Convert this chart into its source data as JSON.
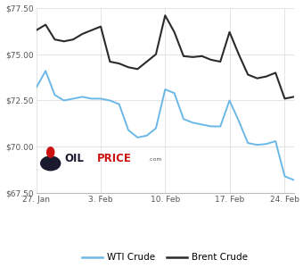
{
  "wti_x": [
    0,
    1,
    2,
    3,
    4,
    5,
    6,
    7,
    8,
    9,
    10,
    11,
    12,
    13,
    14,
    15,
    16,
    17,
    18,
    19,
    20,
    21,
    22,
    23,
    24,
    25,
    26,
    27,
    28
  ],
  "wti_y": [
    73.2,
    74.1,
    72.8,
    72.5,
    72.6,
    72.7,
    72.6,
    72.6,
    72.5,
    72.3,
    70.9,
    70.5,
    70.6,
    71.0,
    73.1,
    72.9,
    71.5,
    71.3,
    71.2,
    71.1,
    71.1,
    72.5,
    71.4,
    70.2,
    70.1,
    70.15,
    70.3,
    68.4,
    68.2
  ],
  "brent_x": [
    0,
    1,
    2,
    3,
    4,
    5,
    6,
    7,
    8,
    9,
    10,
    11,
    12,
    13,
    14,
    15,
    16,
    17,
    18,
    19,
    20,
    21,
    22,
    23,
    24,
    25,
    26,
    27,
    28
  ],
  "brent_y": [
    76.3,
    76.6,
    75.8,
    75.7,
    75.8,
    76.1,
    76.3,
    76.5,
    74.6,
    74.5,
    74.3,
    74.2,
    74.6,
    75.0,
    77.1,
    76.2,
    74.9,
    74.85,
    74.9,
    74.7,
    74.6,
    76.2,
    75.0,
    73.9,
    73.7,
    73.8,
    74.0,
    72.6,
    72.7
  ],
  "xtick_positions": [
    0,
    7,
    14,
    21,
    27
  ],
  "xtick_labels": [
    "27. Jan",
    "3. Feb",
    "10. Feb",
    "17. Feb",
    "24. Feb"
  ],
  "ylim": [
    67.5,
    77.5
  ],
  "yticks": [
    67.5,
    70.0,
    72.5,
    75.0,
    77.5
  ],
  "ytick_labels": [
    "$67.50",
    "$70.00",
    "$72.50",
    "$75.00",
    "$77.50"
  ],
  "wti_color": "#6bb8e8",
  "brent_color": "#2b2b2b",
  "grid_color": "#e0e0e0",
  "bg_color": "#ffffff",
  "legend_wti": "WTI Crude",
  "legend_brent": "Brent Crude",
  "logo_text_oil": "OIL",
  "logo_text_price": "PRICE",
  "logo_dot_color": "#cc1111"
}
